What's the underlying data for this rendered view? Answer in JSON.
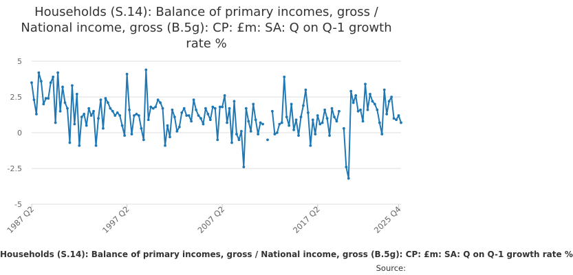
{
  "title": "Households (S.14): Balance of primary incomes, gross / National income, gross (B.5g): CP: £m: SA: Q on Q-1 growth rate %",
  "legend_label": "Households (S.14): Balance of primary incomes, gross / National income, gross (B.5g): CP: £m: SA: Q on Q-1 growth rate %",
  "source_label": "Source:",
  "colors": {
    "series": "#1f78b4",
    "grid": "#dddddd",
    "axis_text": "#666666"
  },
  "chart_data": {
    "type": "line",
    "title": "Households (S.14): Balance of primary incomes, gross / National income, gross (B.5g): CP: £m: SA: Q on Q-1 growth rate %",
    "xlabel": "",
    "ylabel": "",
    "x_start": "1987 Q2",
    "x_end": "2025 Q4",
    "x_ticks": [
      "1987 Q2",
      "1997 Q2",
      "2007 Q2",
      "2017 Q2",
      "2025 Q4"
    ],
    "y_ticks": [
      5,
      2.5,
      0,
      -2.5,
      -5
    ],
    "y_tick_labels": [
      "5",
      "2.5",
      "0",
      "-2.5",
      "-5"
    ],
    "ylim": [
      -5,
      5
    ],
    "grid": "horizontal",
    "series": [
      {
        "values": [
          3.5,
          2.3,
          1.3,
          4.2,
          3.6,
          2,
          2.4,
          2.4,
          3.5,
          3.9,
          0.7,
          4.2,
          1.5,
          3.2,
          2.1,
          1.7,
          -0.7,
          3.3,
          0.6,
          2.7,
          -0.9,
          1.1,
          1.3,
          0.5,
          1.7,
          1.2,
          1.5,
          -0.9,
          1,
          2.3,
          0.3,
          2.4,
          2.1,
          1.7,
          1.5,
          1.2,
          1.4,
          1.2,
          0.5,
          -0.2,
          4.1,
          1.6,
          -0.1,
          1.2,
          1.3,
          1.2,
          0.3,
          -0.5,
          4.4,
          0.9,
          1.8,
          1.7,
          1.8,
          2.3,
          2.1,
          1.7,
          -0.9,
          0.5,
          -0.3,
          1.6,
          1.1,
          0.1,
          0.4,
          1.4,
          1.7,
          1.2,
          1.2,
          0.8,
          2.3,
          1.6,
          1.2,
          1,
          0.6,
          1.7,
          1.3,
          0.9,
          1.8,
          1.7,
          -0.5,
          1.8,
          1.8,
          2.6,
          0.7,
          1.7,
          -0.7,
          2.2,
          -0.1,
          -0.5,
          0.1,
          -2.4,
          1.7,
          0.8,
          0.1,
          2,
          0.9,
          -0.1,
          0.7,
          0.6,
          null,
          -0.5,
          null,
          1.5,
          -0.1,
          0,
          0.6,
          0.7,
          3.9,
          1.1,
          0.5,
          2,
          0.2,
          0.9,
          -0.2,
          1.1,
          1.9,
          3,
          1.4,
          -0.9,
          0.9,
          -0.1,
          1.2,
          0.6,
          0.7,
          1.6,
          1,
          -0.2,
          1.7,
          1.1,
          0.8,
          1.5,
          null,
          0.3,
          -2.4,
          -3.2,
          2.9,
          2.1,
          2.6,
          1.5,
          1.6,
          0.8,
          3.4,
          1.6,
          2.7,
          2.2,
          2,
          1.6,
          0.7,
          -0.1,
          3,
          1.3,
          2.2,
          2.5,
          1,
          0.9,
          1.2,
          0.7
        ]
      }
    ]
  }
}
